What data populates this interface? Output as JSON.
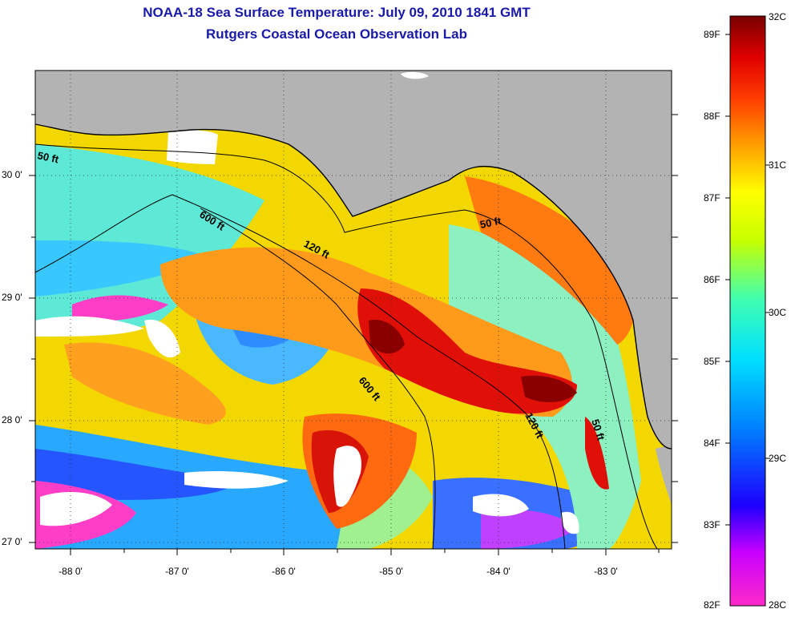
{
  "title": "NOAA-18 Sea Surface Temperature:  July 09, 2010 1841 GMT",
  "subtitle": "Rutgers Coastal Ocean Observation Lab",
  "axes": {
    "lat_labels": [
      "30 0'",
      "29 0'",
      "28 0'",
      "27 0'"
    ],
    "lon_labels": [
      "-88 0'",
      "-87 0'",
      "-86 0'",
      "-85 0'",
      "-84 0'",
      "-83 0'"
    ]
  },
  "contours": [
    "50 ft",
    "600 ft",
    "120 ft",
    "50 ft",
    "600 ft",
    "120 ft",
    "50 ft"
  ],
  "colorbar": {
    "fahrenheit": [
      "89F",
      "88F",
      "87F",
      "86F",
      "85F",
      "84F",
      "83F",
      "82F"
    ],
    "celsius": [
      "32C",
      "31C",
      "30C",
      "29C",
      "28C"
    ]
  },
  "colors": {
    "title": "#1a1aa8",
    "land": "#b3b3b3",
    "scale": [
      "#ff2ac8",
      "#1e00ff",
      "#00c8ff",
      "#00ffe0",
      "#ffff00",
      "#ff7800",
      "#ff0000",
      "#7a0000"
    ]
  }
}
